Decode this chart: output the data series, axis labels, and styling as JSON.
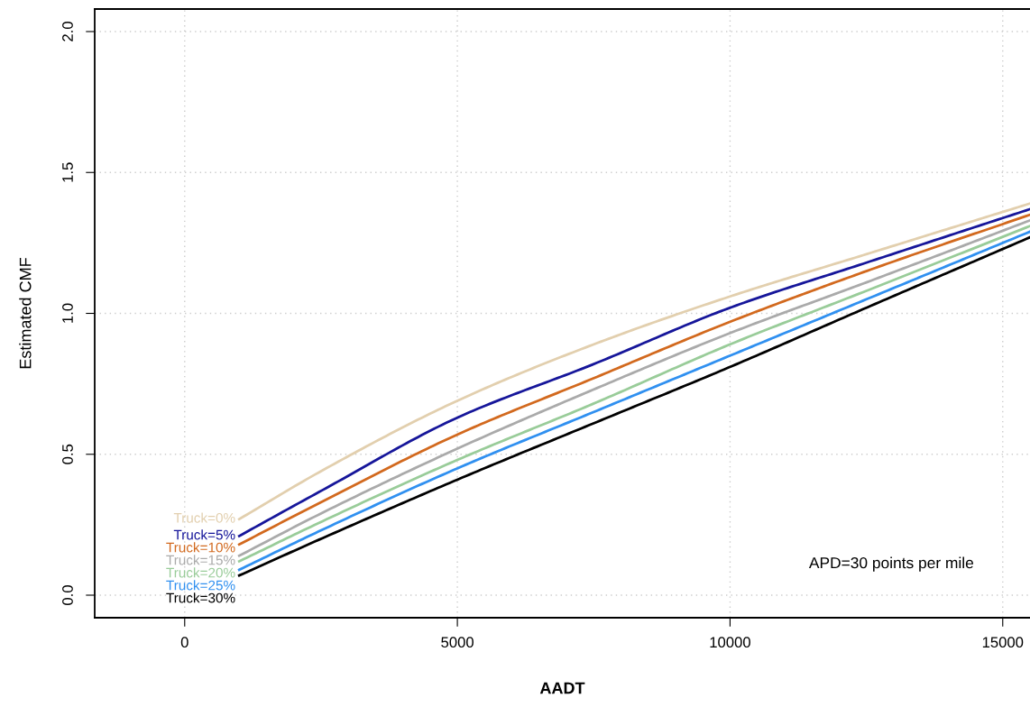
{
  "chart_data": {
    "type": "line",
    "xlabel": "AADT",
    "ylabel": "Estimated CMF",
    "x": [
      1000,
      2500,
      5000,
      7500,
      10000,
      12500,
      15500
    ],
    "series": [
      {
        "name": "Truck=0%",
        "color": "#e2cfae",
        "values": [
          0.27,
          0.44,
          0.69,
          0.89,
          1.06,
          1.21,
          1.39
        ]
      },
      {
        "name": "Truck=5%",
        "color": "#16169a",
        "values": [
          0.21,
          0.37,
          0.63,
          0.82,
          1.02,
          1.18,
          1.37
        ]
      },
      {
        "name": "Truck=10%",
        "color": "#d2691e",
        "values": [
          0.18,
          0.33,
          0.57,
          0.77,
          0.97,
          1.15,
          1.35
        ]
      },
      {
        "name": "Truck=15%",
        "color": "#aaaaaa",
        "values": [
          0.14,
          0.29,
          0.52,
          0.73,
          0.93,
          1.11,
          1.33
        ]
      },
      {
        "name": "Truck=20%",
        "color": "#99cc99",
        "values": [
          0.12,
          0.26,
          0.48,
          0.68,
          0.89,
          1.08,
          1.31
        ]
      },
      {
        "name": "Truck=25%",
        "color": "#3090f0",
        "values": [
          0.09,
          0.23,
          0.45,
          0.65,
          0.85,
          1.05,
          1.29
        ]
      },
      {
        "name": "Truck=30%",
        "color": "#000000",
        "values": [
          0.07,
          0.2,
          0.41,
          0.61,
          0.81,
          1.02,
          1.27
        ]
      }
    ],
    "xlim": [
      -1650,
      15500
    ],
    "ylim": [
      -0.08,
      2.08
    ],
    "xticks": [
      0,
      5000,
      10000,
      15000
    ],
    "yticks": [
      {
        "value": 0,
        "label": "0.0"
      },
      {
        "value": 0.5,
        "label": "0.5"
      },
      {
        "value": 1,
        "label": "1.0"
      },
      {
        "value": 1.5,
        "label": "1.5"
      },
      {
        "value": 2,
        "label": "2.0"
      }
    ],
    "grid": true,
    "legend": false,
    "marker": "none",
    "line_style": "solid",
    "annotations": [
      "APD=30 points per mile"
    ]
  }
}
